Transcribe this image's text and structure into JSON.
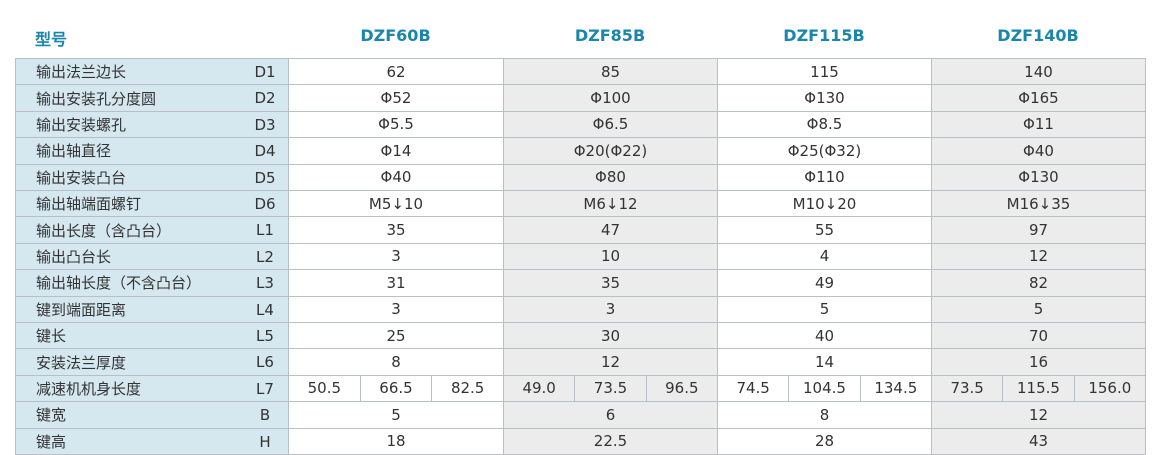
{
  "header": {
    "title": "型号",
    "models": [
      "DZF60B",
      "DZF85B",
      "DZF115B",
      "DZF140B"
    ]
  },
  "rows": [
    {
      "label": "输出法兰边长",
      "code": "D1",
      "values": [
        "62",
        "85",
        "115",
        "140"
      ]
    },
    {
      "label": "输出安装孔分度圆",
      "code": "D2",
      "values": [
        "Φ52",
        "Φ100",
        "Φ130",
        "Φ165"
      ]
    },
    {
      "label": "输出安装螺孔",
      "code": "D3",
      "values": [
        "Φ5.5",
        "Φ6.5",
        "Φ8.5",
        "Φ11"
      ]
    },
    {
      "label": "输出轴直径",
      "code": "D4",
      "values": [
        "Φ14",
        "Φ20(Φ22)",
        "Φ25(Φ32)",
        "Φ40"
      ]
    },
    {
      "label": "输出安装凸台",
      "code": "D5",
      "values": [
        "Φ40",
        "Φ80",
        "Φ110",
        "Φ130"
      ]
    },
    {
      "label": "输出轴端面螺钉",
      "code": "D6",
      "values": [
        "M5↓10",
        "M6↓12",
        "M10↓20",
        "M16↓35"
      ]
    },
    {
      "label": "输出长度（含凸台）",
      "code": "L1",
      "values": [
        "35",
        "47",
        "55",
        "97"
      ]
    },
    {
      "label": "输出凸台长",
      "code": "L2",
      "values": [
        "3",
        "10",
        "4",
        "12"
      ]
    },
    {
      "label": "输出轴长度（不含凸台）",
      "code": "L3",
      "values": [
        "31",
        "35",
        "49",
        "82"
      ]
    },
    {
      "label": "键到端面距离",
      "code": "L4",
      "values": [
        "3",
        "3",
        "5",
        "5"
      ]
    },
    {
      "label": "键长",
      "code": "L5",
      "values": [
        "25",
        "30",
        "40",
        "70"
      ]
    },
    {
      "label": "安装法兰厚度",
      "code": "L6",
      "values": [
        "8",
        "12",
        "14",
        "16"
      ]
    },
    {
      "label": "减速机机身长度",
      "code": "L7",
      "values": [
        [
          "50.5",
          "66.5",
          "82.5"
        ],
        [
          "49.0",
          "73.5",
          "96.5"
        ],
        [
          "74.5",
          "104.5",
          "134.5"
        ],
        [
          "73.5",
          "115.5",
          "156.0"
        ]
      ]
    },
    {
      "label": "键宽",
      "code": "B",
      "values": [
        "5",
        "6",
        "8",
        "12"
      ]
    },
    {
      "label": "键高",
      "code": "H",
      "values": [
        "18",
        "22.5",
        "28",
        "43"
      ]
    }
  ]
}
